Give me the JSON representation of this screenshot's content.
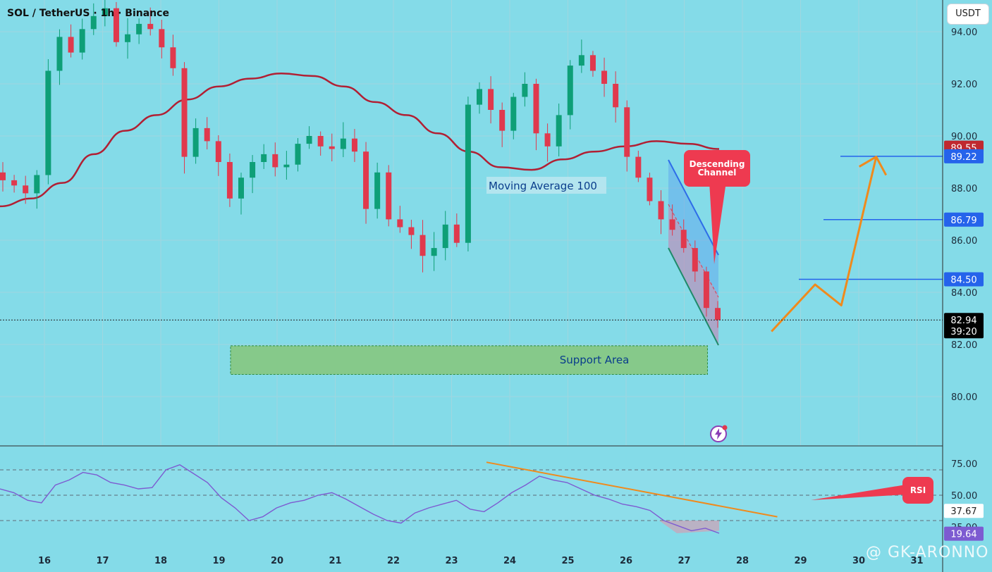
{
  "header": {
    "symbol_title": "SOL / TetherUS · 1h · Binance",
    "currency_button": "USDT"
  },
  "watermark": "@ GK-ARONNO",
  "colors": {
    "background": "#84dbe8",
    "up_candle": "#0e9f77",
    "down_candle": "#e0394d",
    "moving_average": "#b11f33",
    "support_area": "#86c98a",
    "channel_upper": "#2e6de8",
    "channel_lower": "#1f8a6a",
    "projection_arrow": "#f08a1c",
    "rsi_line": "#7d5bd1",
    "level_line": "#2563eb"
  },
  "chart_data": [
    {
      "type": "candlestick",
      "name": "price",
      "interval": "1h",
      "ylim": [
        78.0,
        95.0
      ],
      "y_ticks": [
        "94.00",
        "92.00",
        "90.00",
        "88.00",
        "86.00",
        "84.00",
        "82.00",
        "80.00"
      ],
      "x_ticks": [
        "16",
        "17",
        "18",
        "19",
        "20",
        "21",
        "22",
        "23",
        "24",
        "25",
        "26",
        "27",
        "28",
        "29",
        "30",
        "31"
      ],
      "bold_x_ticks": [
        "23"
      ],
      "candles_approx_close": [
        88.3,
        88.1,
        87.8,
        88.5,
        92.5,
        93.8,
        93.2,
        94.1,
        94.6,
        94.9,
        93.6,
        93.9,
        94.3,
        94.1,
        93.4,
        92.6,
        89.2,
        90.3,
        89.8,
        89.0,
        87.6,
        88.4,
        89.0,
        89.3,
        88.8,
        88.9,
        89.7,
        90.0,
        89.6,
        89.5,
        89.9,
        89.4,
        87.2,
        88.6,
        86.8,
        86.5,
        86.2,
        85.4,
        85.7,
        86.6,
        85.9,
        91.2,
        91.8,
        91.0,
        90.2,
        91.5,
        92.0,
        90.1,
        89.6,
        90.8,
        92.7,
        93.1,
        92.5,
        92.0,
        91.1,
        89.2,
        88.4,
        87.5,
        86.8,
        86.4,
        85.7,
        84.8,
        83.4,
        82.94
      ],
      "current_price": "82.94",
      "countdown": "39:20",
      "moving_average": {
        "label": "Moving Average 100",
        "period": 100,
        "values_approx": [
          87.3,
          87.6,
          88.2,
          89.3,
          90.2,
          90.8,
          91.4,
          91.9,
          92.2,
          92.4,
          92.3,
          91.9,
          91.3,
          90.8,
          90.1,
          89.4,
          88.8,
          88.7,
          89.1,
          89.4,
          89.6,
          89.8,
          89.7,
          89.5
        ]
      },
      "horizontal_levels": [
        {
          "value": 89.22,
          "label": "89.22"
        },
        {
          "value": 86.79,
          "label": "86.79"
        },
        {
          "value": 84.5,
          "label": "84.50"
        }
      ],
      "price_badges": [
        {
          "value": 89.55,
          "label": "89.55",
          "color": "#c0282f"
        },
        {
          "value": 89.22,
          "label": "89.22",
          "color": "#2563eb"
        },
        {
          "value": 86.79,
          "label": "86.79",
          "color": "#2563eb"
        },
        {
          "value": 84.5,
          "label": "84.50",
          "color": "#2563eb"
        },
        {
          "value": 82.94,
          "label": "82.94",
          "color": "#000000"
        }
      ],
      "support_area": {
        "label": "Support Area",
        "y_low": 80.85,
        "y_high": 81.95,
        "x_start": "19.2",
        "x_end": "27.4"
      },
      "annotations": [
        {
          "label": "Descending\nChannel",
          "type": "callout"
        },
        {
          "label": "RSI",
          "type": "callout"
        }
      ],
      "projection_path": [
        {
          "x": 28.5,
          "y": 82.5
        },
        {
          "x": 29.25,
          "y": 84.3
        },
        {
          "x": 29.7,
          "y": 83.5
        },
        {
          "x": 30.3,
          "y": 89.2
        },
        {
          "x": 30.5,
          "y": 88.5
        }
      ]
    },
    {
      "type": "line",
      "name": "RSI",
      "ylim": [
        15,
        80
      ],
      "y_ticks": [
        "75.00",
        "50.00",
        "25.00"
      ],
      "badges": [
        {
          "value": 37.67,
          "label": "37.67"
        },
        {
          "value": 19.64,
          "label": "19.64"
        }
      ],
      "levels": [
        70,
        50,
        30
      ],
      "values_approx": [
        55,
        52,
        46,
        44,
        58,
        62,
        68,
        66,
        60,
        58,
        55,
        56,
        70,
        74,
        67,
        60,
        48,
        40,
        30,
        33,
        40,
        44,
        46,
        50,
        52,
        47,
        41,
        35,
        30,
        28,
        36,
        40,
        43,
        46,
        39,
        37,
        44,
        52,
        58,
        65,
        62,
        60,
        55,
        50,
        47,
        43,
        41,
        38,
        30,
        26,
        22,
        24,
        20
      ],
      "trendline": {
        "from": {
          "x": 23.6,
          "y": 76
        },
        "to": {
          "x": 28.6,
          "y": 33
        }
      }
    }
  ]
}
